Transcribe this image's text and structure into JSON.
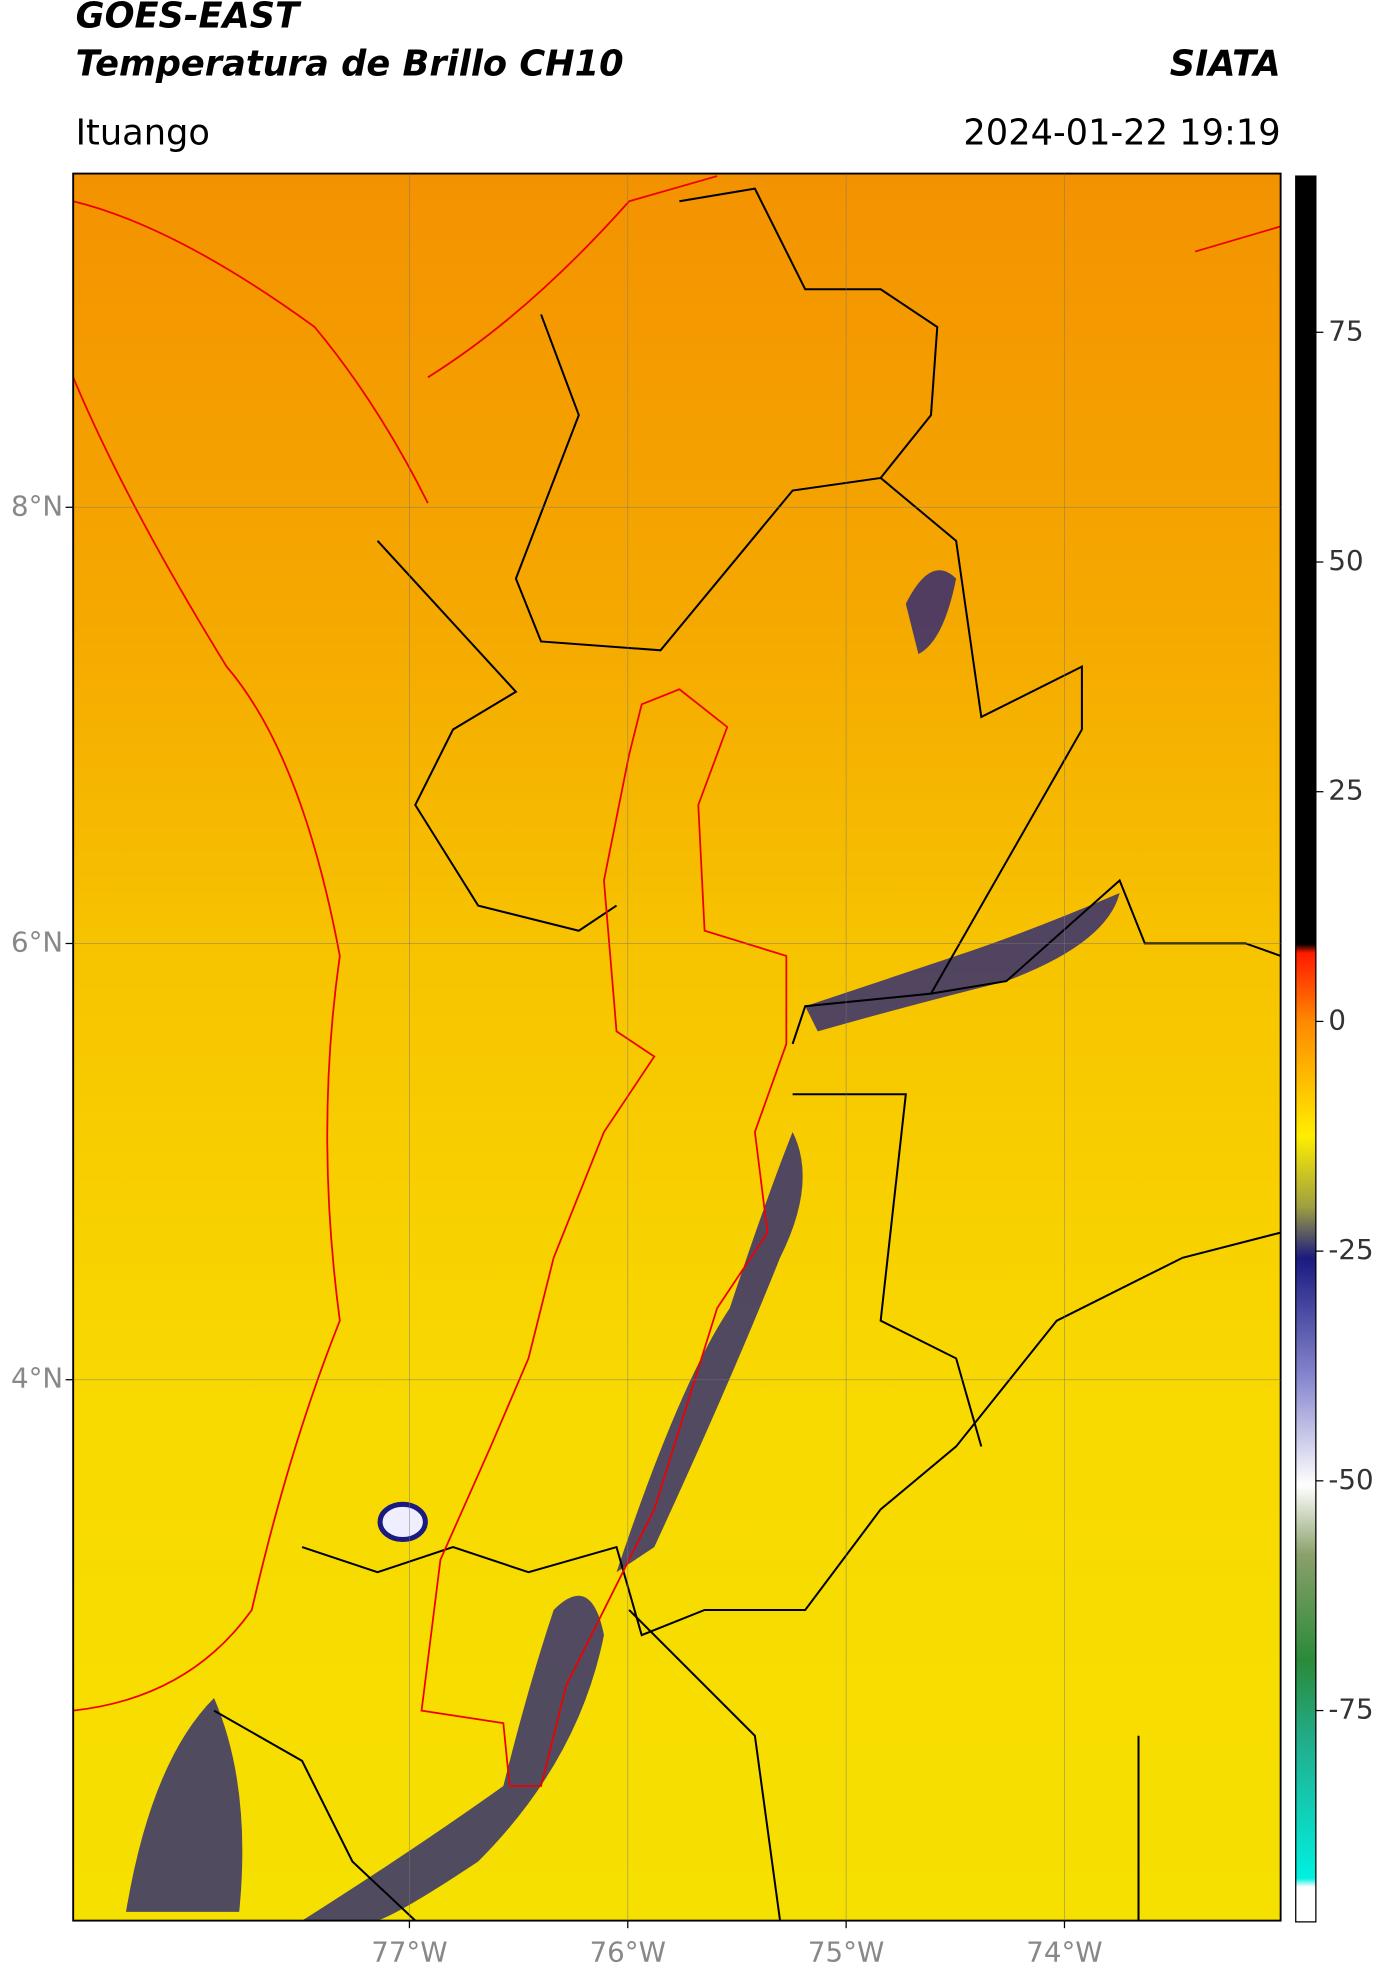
{
  "header": {
    "title": "GOES-EAST",
    "subtitle": "Temperatura de Brillo CH10",
    "brand": "SIATA",
    "location": "Ituango",
    "datetime": "2024-01-22 19:19"
  },
  "map": {
    "xlim": [
      -78.54,
      -73.01
    ],
    "ylim": [
      1.52,
      9.53
    ],
    "xticks": [
      {
        "value": -77,
        "label": "77°W"
      },
      {
        "value": -76,
        "label": "76°W"
      },
      {
        "value": -75,
        "label": "75°W"
      },
      {
        "value": -74,
        "label": "74°W"
      }
    ],
    "yticks": [
      {
        "value": 8,
        "label": "8°N"
      },
      {
        "value": 6,
        "label": "6°N"
      },
      {
        "value": 4,
        "label": "4°N"
      }
    ],
    "grid": true
  },
  "colorbar": {
    "clim": [
      -98,
      92
    ],
    "ticks": [
      75,
      50,
      25,
      0,
      -25,
      -50,
      -75
    ]
  }
}
